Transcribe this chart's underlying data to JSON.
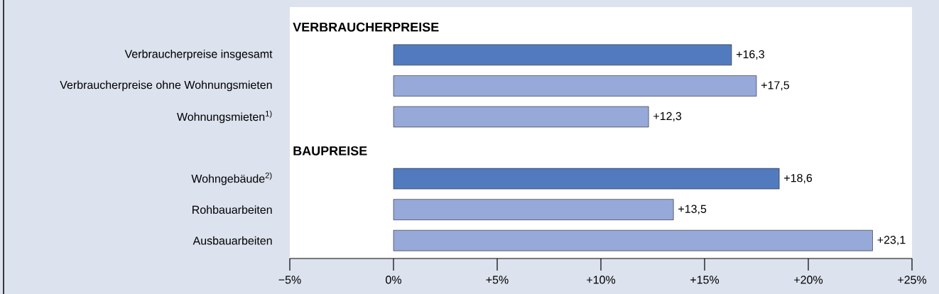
{
  "chart_data": {
    "type": "bar",
    "orientation": "horizontal",
    "annotations": [
      "VERBRAUCHERPREISE",
      "BAUPREISE"
    ],
    "categories": [
      "Verbraucherpreise insgesamt",
      "Verbraucherpreise ohne Wohnungsmieten",
      "Wohnungsmieten$^{1)}$",
      null,
      "Wohngebäude$^{2)}$",
      "Rohbauarbeiten",
      "Ausbauarbeiten"
    ],
    "values": [
      16.3,
      17.5,
      12.3,
      null,
      18.6,
      13.5,
      23.1
    ],
    "colors": [
      "#527bbf",
      "#97a9d8",
      "#97a9d8",
      null,
      "#527bbf",
      "#97a9d8",
      "#97a9d8"
    ],
    "value_labels": [
      "+16,3",
      "+17,5",
      "+12,3",
      null,
      "+18,6",
      "+13,5",
      "+23,1"
    ],
    "xlim": [
      -5,
      25
    ],
    "xticks": [
      {
        "value": -5,
        "label": "−5%"
      },
      {
        "value": 0,
        "label": "0%"
      },
      {
        "value": 5,
        "label": "+5%"
      },
      {
        "value": 10,
        "label": "+10%"
      },
      {
        "value": 15,
        "label": "+15%"
      },
      {
        "value": 20,
        "label": "+20%"
      },
      {
        "value": 25,
        "label": "+25%"
      }
    ]
  }
}
